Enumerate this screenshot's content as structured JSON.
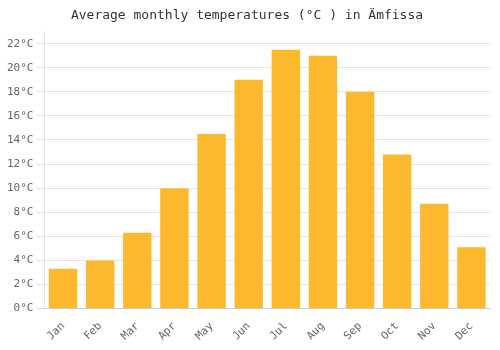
{
  "chart_data": {
    "type": "bar",
    "title": "Average monthly temperatures (°C ) in Ä​mfissa",
    "categories": [
      "Jan",
      "Feb",
      "Mar",
      "Apr",
      "May",
      "Jun",
      "Jul",
      "Aug",
      "Sep",
      "Oct",
      "Nov",
      "Dec"
    ],
    "values": [
      3.3,
      4.0,
      6.3,
      10.0,
      14.5,
      19.0,
      21.5,
      21.0,
      18.0,
      12.8,
      8.7,
      5.1
    ],
    "color": "#FDB92E",
    "ylim": [
      0,
      23
    ],
    "yticks": [
      {
        "value": 0,
        "label": "0°C"
      },
      {
        "value": 2,
        "label": "2°C"
      },
      {
        "value": 4,
        "label": "4°C"
      },
      {
        "value": 6,
        "label": "6°C"
      },
      {
        "value": 8,
        "label": "8°C"
      },
      {
        "value": 10,
        "label": "10°C"
      },
      {
        "value": 12,
        "label": "12°C"
      },
      {
        "value": 14,
        "label": "14°C"
      },
      {
        "value": 16,
        "label": "16°C"
      },
      {
        "value": 18,
        "label": "18°C"
      },
      {
        "value": 20,
        "label": "20°C"
      },
      {
        "value": 22,
        "label": "22°C"
      }
    ],
    "grid": true
  }
}
